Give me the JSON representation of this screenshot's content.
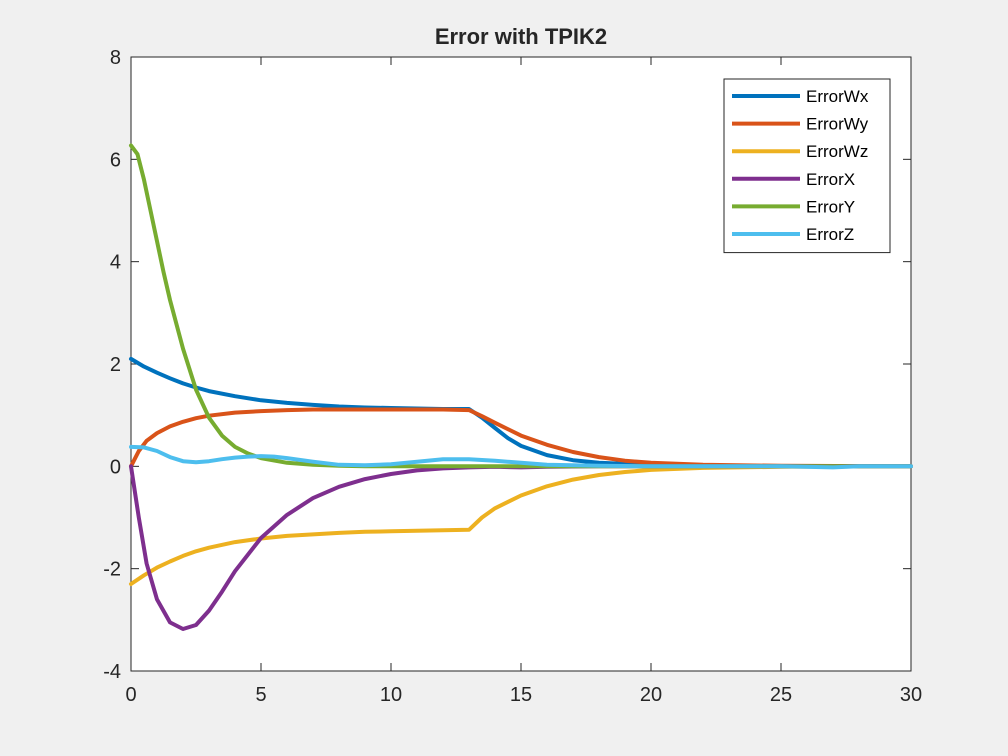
{
  "chart_data": {
    "type": "line",
    "title": "Error with TPIK2",
    "xlabel": "",
    "ylabel": "",
    "xlim": [
      0,
      30
    ],
    "ylim": [
      -4,
      8
    ],
    "xticks": [
      0,
      5,
      10,
      15,
      20,
      25,
      30
    ],
    "yticks": [
      -4,
      -2,
      0,
      2,
      4,
      6,
      8
    ],
    "grid": false,
    "legend_position": "top-right",
    "series": [
      {
        "name": "ErrorWx",
        "color": "#0072BD",
        "x": [
          0,
          0.5,
          1,
          1.5,
          2,
          2.5,
          3,
          4,
          5,
          6,
          7,
          8,
          9,
          10,
          11,
          12,
          13,
          13.5,
          14,
          14.5,
          15,
          16,
          17,
          18,
          20,
          22,
          25,
          30
        ],
        "y": [
          2.1,
          1.95,
          1.83,
          1.72,
          1.62,
          1.54,
          1.47,
          1.37,
          1.29,
          1.24,
          1.2,
          1.17,
          1.15,
          1.14,
          1.13,
          1.12,
          1.12,
          0.95,
          0.75,
          0.55,
          0.4,
          0.22,
          0.12,
          0.07,
          0.03,
          0.01,
          0.0,
          0.0
        ]
      },
      {
        "name": "ErrorWy",
        "color": "#D95319",
        "x": [
          0,
          0.3,
          0.6,
          1,
          1.5,
          2,
          2.5,
          3,
          4,
          5,
          6,
          7,
          8,
          9,
          10,
          11,
          12,
          13,
          13.5,
          14,
          15,
          16,
          17,
          18,
          19,
          20,
          22,
          25,
          30
        ],
        "y": [
          0.0,
          0.3,
          0.5,
          0.65,
          0.78,
          0.87,
          0.94,
          0.99,
          1.05,
          1.08,
          1.1,
          1.11,
          1.11,
          1.11,
          1.11,
          1.11,
          1.11,
          1.1,
          0.98,
          0.85,
          0.6,
          0.42,
          0.28,
          0.18,
          0.11,
          0.07,
          0.03,
          0.01,
          0.0
        ]
      },
      {
        "name": "ErrorWz",
        "color": "#EDB120",
        "x": [
          0,
          0.5,
          1,
          1.5,
          2,
          2.5,
          3,
          4,
          5,
          6,
          7,
          8,
          9,
          10,
          11,
          12,
          13,
          13.5,
          14,
          15,
          16,
          17,
          18,
          19,
          20,
          22,
          25,
          30
        ],
        "y": [
          -2.3,
          -2.13,
          -1.98,
          -1.86,
          -1.75,
          -1.66,
          -1.59,
          -1.48,
          -1.41,
          -1.36,
          -1.33,
          -1.3,
          -1.28,
          -1.27,
          -1.26,
          -1.25,
          -1.24,
          -1.0,
          -0.82,
          -0.57,
          -0.39,
          -0.26,
          -0.17,
          -0.11,
          -0.07,
          -0.03,
          -0.01,
          0.0
        ]
      },
      {
        "name": "ErrorX",
        "color": "#7E2F8E",
        "x": [
          0,
          0.3,
          0.6,
          1,
          1.5,
          2,
          2.5,
          3,
          3.5,
          4,
          5,
          6,
          7,
          8,
          9,
          10,
          11,
          12,
          13,
          14,
          15,
          16,
          18,
          20,
          25,
          30
        ],
        "y": [
          0.0,
          -1.0,
          -1.9,
          -2.6,
          -3.05,
          -3.18,
          -3.1,
          -2.82,
          -2.45,
          -2.05,
          -1.4,
          -0.95,
          -0.62,
          -0.4,
          -0.25,
          -0.15,
          -0.08,
          -0.04,
          -0.02,
          -0.01,
          -0.02,
          -0.01,
          0.0,
          0.0,
          0.0,
          0.0
        ]
      },
      {
        "name": "ErrorY",
        "color": "#77AC30",
        "x": [
          0,
          0.25,
          0.5,
          0.75,
          1,
          1.25,
          1.5,
          2,
          2.5,
          3,
          3.5,
          4,
          4.5,
          5,
          6,
          7,
          8,
          9,
          10,
          11,
          12,
          13,
          15,
          20,
          25,
          30
        ],
        "y": [
          6.27,
          6.1,
          5.6,
          5.0,
          4.4,
          3.8,
          3.25,
          2.3,
          1.5,
          0.95,
          0.6,
          0.38,
          0.25,
          0.16,
          0.07,
          0.03,
          0.01,
          0.0,
          0.0,
          0.0,
          0.0,
          0.0,
          0.0,
          0.0,
          0.0,
          0.0
        ]
      },
      {
        "name": "ErrorZ",
        "color": "#4DBEEE",
        "x": [
          0,
          0.5,
          1,
          1.5,
          2,
          2.5,
          3,
          3.5,
          4,
          4.5,
          5,
          5.5,
          6,
          7,
          8,
          9,
          10,
          11,
          12,
          13,
          14,
          15,
          16,
          18,
          20,
          25,
          27,
          28,
          30
        ],
        "y": [
          0.38,
          0.37,
          0.3,
          0.18,
          0.1,
          0.08,
          0.1,
          0.14,
          0.17,
          0.19,
          0.2,
          0.19,
          0.16,
          0.09,
          0.03,
          0.02,
          0.04,
          0.09,
          0.14,
          0.14,
          0.11,
          0.07,
          0.03,
          0.01,
          0.0,
          0.0,
          -0.02,
          0.0,
          0.0
        ]
      }
    ]
  }
}
